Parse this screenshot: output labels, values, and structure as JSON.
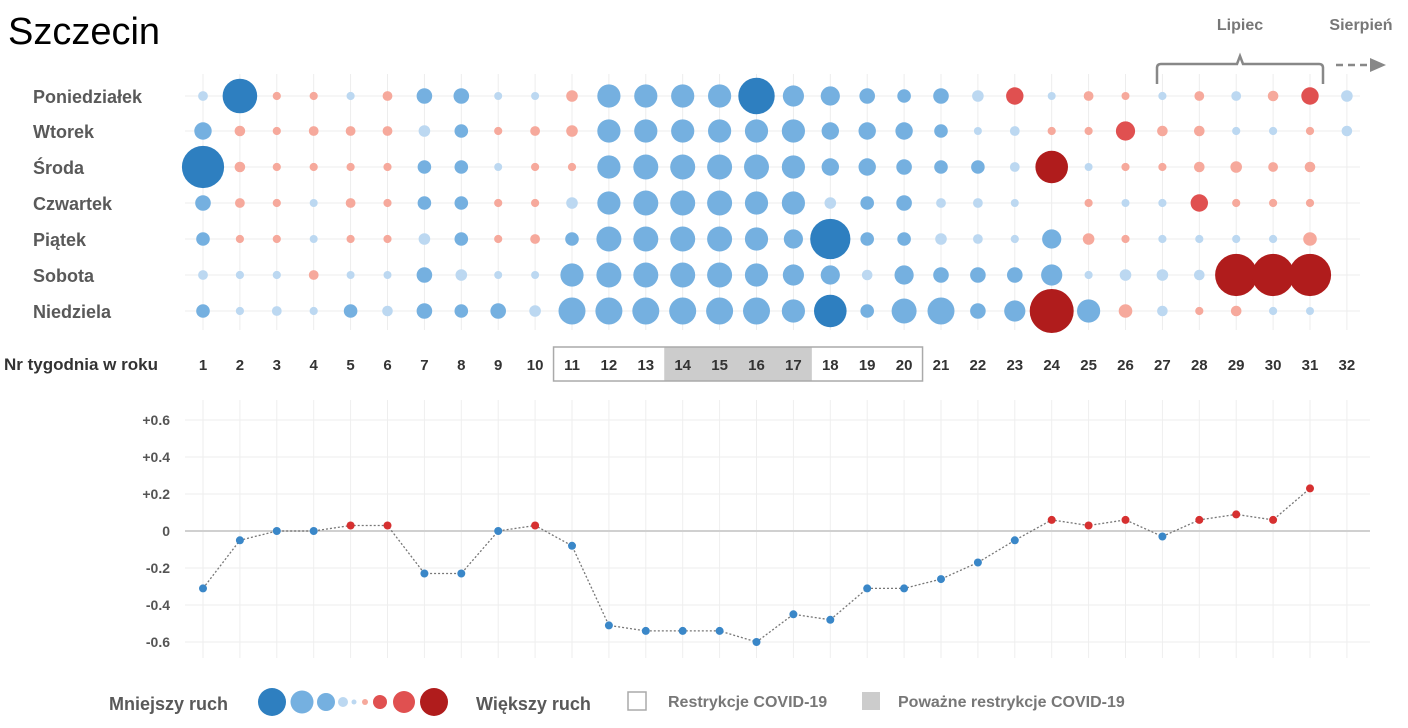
{
  "title": "Szczecin",
  "months": {
    "july": "Lipiec",
    "august": "Sierpień"
  },
  "week_axis_label": "Nr tygodnia w roku",
  "legend": {
    "less": "Mniejszy ruch",
    "more": "Większy ruch",
    "restrictions": "Restrykcje COVID-19",
    "severe_restrictions": "Poważne restrykcje COVID-19"
  },
  "colors": {
    "blue_strong": "#2e7fc0",
    "blue": "#75b0e0",
    "blue_light": "#bcd8f1",
    "red_light": "#f6a99c",
    "red": "#e05050",
    "red_strong": "#b01c1c",
    "line_point_blue": "#3a87c8",
    "line_point_red": "#d63030",
    "restriction_box": "#cccccc",
    "severe_fill": "#cccccc"
  },
  "chart_data": [
    {
      "type": "bubble-matrix",
      "rows": [
        "Poniedziałek",
        "Wtorek",
        "Środa",
        "Czwartek",
        "Piątek",
        "Sobota",
        "Niedziela"
      ],
      "weeks": [
        "1",
        "2",
        "3",
        "4",
        "5",
        "6",
        "7",
        "8",
        "9",
        "10",
        "11",
        "12",
        "13",
        "14",
        "15",
        "16",
        "17",
        "18",
        "19",
        "20",
        "21",
        "22",
        "23",
        "24",
        "25",
        "26",
        "27",
        "28",
        "29",
        "30",
        "31",
        "32"
      ],
      "restriction_weeks": [
        11,
        20
      ],
      "severe_restriction_weeks": [
        14,
        17
      ],
      "month_markers": [
        {
          "label": "Lipiec",
          "from_week": 27,
          "to_week": 31
        },
        {
          "label": "Sierpień",
          "from_week": 32
        }
      ],
      "values": [
        [
          -0.1,
          -0.75,
          0.06,
          0.06,
          -0.06,
          0.1,
          -0.25,
          -0.25,
          -0.05,
          -0.05,
          0.15,
          -0.45,
          -0.45,
          -0.45,
          -0.45,
          -0.8,
          -0.4,
          -0.35,
          -0.25,
          -0.2,
          -0.25,
          -0.15,
          0.3,
          -0.05,
          0.1,
          0.05,
          -0.06,
          0.1,
          -0.1,
          0.12,
          0.3,
          -0.15
        ],
        [
          -0.3,
          0.12,
          0.06,
          0.1,
          0.1,
          0.1,
          -0.15,
          -0.2,
          0.06,
          0.1,
          0.15,
          -0.45,
          -0.45,
          -0.45,
          -0.45,
          -0.45,
          -0.45,
          -0.3,
          -0.3,
          -0.3,
          -0.2,
          -0.05,
          -0.1,
          0.06,
          0.06,
          0.35,
          0.12,
          0.12,
          -0.06,
          -0.06,
          0.06,
          -0.12
        ],
        [
          -0.95,
          0.12,
          0.06,
          0.06,
          0.06,
          0.06,
          -0.2,
          -0.2,
          -0.05,
          0.06,
          0.06,
          -0.45,
          -0.5,
          -0.5,
          -0.5,
          -0.5,
          -0.45,
          -0.3,
          -0.3,
          -0.25,
          -0.2,
          -0.2,
          -0.1,
          0.7,
          -0.05,
          0.06,
          0.06,
          0.12,
          0.15,
          0.1,
          0.12,
          0
        ],
        [
          -0.25,
          0.1,
          0.06,
          -0.05,
          0.1,
          0.06,
          -0.2,
          -0.2,
          0.06,
          0.06,
          -0.15,
          -0.45,
          -0.5,
          -0.5,
          -0.5,
          -0.45,
          -0.45,
          -0.15,
          -0.2,
          -0.25,
          -0.1,
          -0.1,
          -0.05,
          0,
          0.06,
          -0.05,
          -0.06,
          0.3,
          0.06,
          0.06,
          0.06,
          0
        ],
        [
          -0.2,
          0.06,
          0.06,
          -0.05,
          0.06,
          0.06,
          -0.15,
          -0.2,
          0.06,
          0.1,
          -0.2,
          -0.5,
          -0.5,
          -0.5,
          -0.5,
          -0.45,
          -0.35,
          -0.9,
          -0.2,
          -0.2,
          -0.15,
          -0.1,
          -0.06,
          -0.35,
          0.15,
          0.06,
          -0.06,
          -0.06,
          -0.06,
          -0.06,
          0.2,
          0
        ],
        [
          -0.1,
          -0.06,
          -0.06,
          0.1,
          -0.05,
          -0.05,
          -0.25,
          -0.15,
          -0.05,
          -0.05,
          -0.45,
          -0.5,
          -0.5,
          -0.5,
          -0.5,
          -0.45,
          -0.4,
          -0.35,
          -0.12,
          -0.35,
          -0.25,
          -0.25,
          -0.25,
          -0.4,
          -0.06,
          -0.15,
          -0.15,
          -0.12,
          0.95,
          0.95,
          0.95,
          0
        ],
        [
          -0.2,
          -0.06,
          -0.1,
          -0.06,
          -0.2,
          -0.12,
          -0.25,
          -0.2,
          -0.25,
          -0.15,
          -0.55,
          -0.55,
          -0.55,
          -0.55,
          -0.55,
          -0.55,
          -0.45,
          -0.7,
          -0.2,
          -0.5,
          -0.55,
          -0.25,
          -0.4,
          1.0,
          -0.45,
          0.2,
          -0.12,
          0.06,
          0.12,
          -0.06,
          -0.05,
          0
        ]
      ]
    },
    {
      "type": "line",
      "x": [
        1,
        2,
        3,
        4,
        5,
        6,
        7,
        8,
        9,
        10,
        11,
        12,
        13,
        14,
        15,
        16,
        17,
        18,
        19,
        20,
        21,
        22,
        23,
        24,
        25,
        26,
        27,
        28,
        29,
        30,
        31
      ],
      "y": [
        -0.31,
        -0.05,
        0,
        0,
        0.03,
        0.03,
        -0.23,
        -0.23,
        0,
        0.03,
        -0.08,
        -0.51,
        -0.54,
        -0.54,
        -0.54,
        -0.6,
        -0.45,
        -0.48,
        -0.31,
        -0.31,
        -0.26,
        -0.17,
        -0.05,
        0.06,
        0.03,
        0.06,
        -0.03,
        0.06,
        0.09,
        0.06,
        0.23
      ],
      "yticks": [
        "+0.6",
        "+0.4",
        "+0.2",
        "0",
        "-0.2",
        "-0.4",
        "-0.6"
      ],
      "ylim": [
        -0.65,
        0.65
      ],
      "xlim": [
        1,
        32
      ],
      "grid": true,
      "legend": "bottom"
    }
  ]
}
